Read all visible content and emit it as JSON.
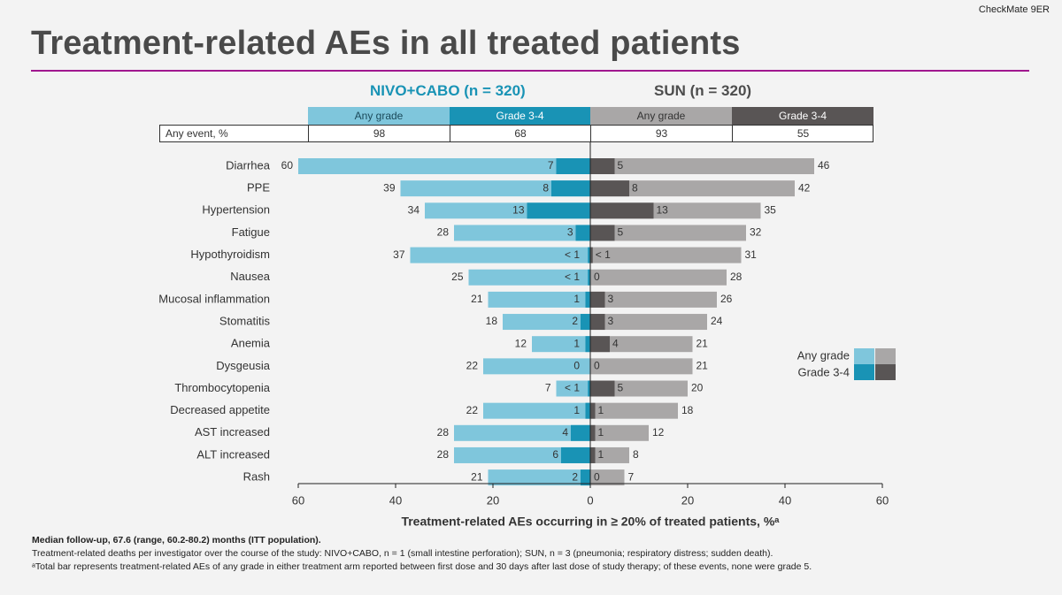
{
  "study_tag": "CheckMate 9ER",
  "title": "Treatment-related AEs in all treated patients",
  "arms": {
    "left": {
      "title": "NIVO+CABO (n = 320)",
      "any_grade_label": "Any grade",
      "grade34_label": "Grade 3-4",
      "any_event_any": "98",
      "any_event_g34": "68"
    },
    "right": {
      "title": "SUN (n = 320)",
      "any_grade_label": "Any grade",
      "grade34_label": "Grade 3-4",
      "any_event_any": "93",
      "any_event_g34": "55"
    }
  },
  "any_event_label": "Any event, %",
  "colors": {
    "left_any": "#7fc6dc",
    "left_g34": "#1993b5",
    "right_any": "#a9a7a7",
    "right_g34": "#595555",
    "accent_rule": "#a0178e"
  },
  "chart_data": {
    "type": "bar",
    "orientation": "horizontal-diverging",
    "title": "Treatment-related AEs in all treated patients",
    "xlabel": "Treatment-related AEs occurring in ≥ 20% of treated patients, %ᵃ",
    "xlim": [
      -60,
      60
    ],
    "xticks": [
      -60,
      -40,
      -20,
      0,
      20,
      40,
      60
    ],
    "xtick_labels": [
      "60",
      "40",
      "20",
      "0",
      "20",
      "40",
      "60"
    ],
    "legend": {
      "position": "right",
      "any_grade": "Any grade",
      "grade34": "Grade 3-4"
    },
    "categories": [
      "Diarrhea",
      "PPE",
      "Hypertension",
      "Fatigue",
      "Hypothyroidism",
      "Nausea",
      "Mucosal inflammation",
      "Stomatitis",
      "Anemia",
      "Dysgeusia",
      "Thrombocytopenia",
      "Decreased appetite",
      "AST increased",
      "ALT increased",
      "Rash"
    ],
    "series": [
      {
        "name": "NIVO+CABO Any grade",
        "values": [
          60,
          39,
          34,
          28,
          37,
          25,
          21,
          18,
          12,
          22,
          7,
          22,
          28,
          28,
          21
        ],
        "labels": [
          "60",
          "39",
          "34",
          "28",
          "37",
          "25",
          "21",
          "18",
          "12",
          "22",
          "7",
          "22",
          "28",
          "28",
          "21"
        ]
      },
      {
        "name": "NIVO+CABO Grade 3-4",
        "values": [
          7,
          8,
          13,
          3,
          0.5,
          0.5,
          1,
          2,
          1,
          0,
          0.5,
          1,
          4,
          6,
          2
        ],
        "labels": [
          "7",
          "8",
          "13",
          "3",
          "< 1",
          "< 1",
          "1",
          "2",
          "1",
          "0",
          "< 1",
          "1",
          "4",
          "6",
          "2"
        ]
      },
      {
        "name": "SUN Any grade",
        "values": [
          46,
          42,
          35,
          32,
          31,
          28,
          26,
          24,
          21,
          21,
          20,
          18,
          12,
          8,
          7
        ],
        "labels": [
          "46",
          "42",
          "35",
          "32",
          "31",
          "28",
          "26",
          "24",
          "21",
          "21",
          "20",
          "18",
          "12",
          "8",
          "7"
        ]
      },
      {
        "name": "SUN Grade 3-4",
        "values": [
          5,
          8,
          13,
          5,
          0.5,
          0,
          3,
          3,
          4,
          0,
          5,
          1,
          1,
          1,
          0
        ],
        "labels": [
          "5",
          "8",
          "13",
          "5",
          "< 1",
          "0",
          "3",
          "3",
          "4",
          "0",
          "5",
          "1",
          "1",
          "1",
          "0"
        ]
      }
    ]
  },
  "footnotes": [
    "Median follow-up, 67.6 (range, 60.2-80.2) months (ITT population).",
    "Treatment-related deaths per investigator over the course of the study: NIVO+CABO, n = 1 (small intestine perforation); SUN, n = 3 (pneumonia; respiratory distress; sudden death).",
    "ᵃTotal bar represents treatment-related AEs of any grade in either treatment arm reported between first dose and 30 days after last dose of study therapy; of these events, none were grade 5."
  ]
}
